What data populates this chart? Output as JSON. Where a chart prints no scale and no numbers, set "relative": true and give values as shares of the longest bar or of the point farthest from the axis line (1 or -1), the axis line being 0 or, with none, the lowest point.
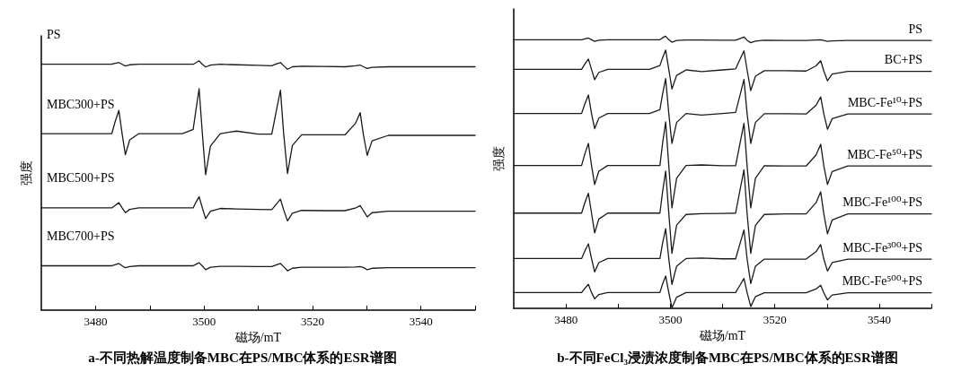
{
  "chart_data": [
    {
      "type": "line",
      "title": "a-不同热解温度制备MBC在PS/MBC体系的ESR谱图",
      "xlabel": "磁场/mT",
      "ylabel": "强度",
      "relative": true,
      "marker": "none",
      "xlim": [
        3470,
        3550
      ],
      "xticks": [
        3480,
        {
          "value": 3490,
          "label": null
        },
        3500,
        {
          "value": 3510,
          "label": null
        },
        3520,
        {
          "value": 3530,
          "label": null
        },
        3540,
        {
          "value": 3550,
          "label": null
        }
      ],
      "x": [
        3470,
        3475,
        3480,
        3483,
        3483.6,
        3484.3,
        3484.9,
        3485.5,
        3486.3,
        3488,
        3492,
        3496,
        3498,
        3498.5,
        3499.1,
        3499.7,
        3500.3,
        3501.2,
        3503,
        3506,
        3510,
        3512.5,
        3513.3,
        3514.1,
        3514.7,
        3515.4,
        3516.3,
        3518,
        3522,
        3526,
        3527.9,
        3528.8,
        3529.4,
        3530.1,
        3531,
        3534,
        3538,
        3542,
        3546,
        3550
      ],
      "series": [
        {
          "name": "PS",
          "color": "#1a1a1a",
          "values": [
            0.986,
            0.986,
            0.986,
            0.986,
            0.99,
            0.993,
            0.986,
            0.979,
            0.984,
            0.986,
            0.986,
            0.986,
            0.986,
            0.992,
            1.0,
            0.986,
            0.975,
            0.983,
            0.986,
            0.984,
            0.982,
            0.98,
            0.987,
            0.993,
            0.98,
            0.966,
            0.976,
            0.978,
            0.977,
            0.976,
            0.98,
            0.983,
            0.976,
            0.969,
            0.974,
            0.976,
            0.976,
            0.976,
            0.976,
            0.976
          ]
        },
        {
          "name": "MBC300+PS",
          "color": "#1a1a1a",
          "values": [
            0.708,
            0.708,
            0.708,
            0.708,
            0.755,
            0.801,
            0.708,
            0.623,
            0.683,
            0.708,
            0.708,
            0.708,
            0.725,
            0.8,
            0.888,
            0.708,
            0.543,
            0.658,
            0.708,
            0.718,
            0.706,
            0.706,
            0.795,
            0.882,
            0.706,
            0.548,
            0.66,
            0.703,
            0.703,
            0.703,
            0.748,
            0.792,
            0.703,
            0.621,
            0.679,
            0.701,
            0.701,
            0.701,
            0.701,
            0.701
          ]
        },
        {
          "name": "MBC500+PS",
          "color": "#1a1a1a",
          "values": [
            0.41,
            0.41,
            0.41,
            0.41,
            0.42,
            0.431,
            0.41,
            0.391,
            0.404,
            0.41,
            0.41,
            0.41,
            0.41,
            0.432,
            0.455,
            0.41,
            0.367,
            0.397,
            0.408,
            0.406,
            0.404,
            0.403,
            0.424,
            0.445,
            0.402,
            0.358,
            0.389,
            0.4,
            0.399,
            0.399,
            0.409,
            0.419,
            0.399,
            0.374,
            0.391,
            0.397,
            0.397,
            0.397,
            0.397,
            0.397
          ]
        },
        {
          "name": "MBC700+PS",
          "color": "#1a1a1a",
          "values": [
            0.178,
            0.178,
            0.178,
            0.178,
            0.182,
            0.187,
            0.178,
            0.17,
            0.175,
            0.178,
            0.178,
            0.178,
            0.178,
            0.184,
            0.19,
            0.177,
            0.162,
            0.172,
            0.176,
            0.176,
            0.175,
            0.175,
            0.181,
            0.187,
            0.174,
            0.158,
            0.168,
            0.172,
            0.172,
            0.172,
            0.173,
            0.175,
            0.171,
            0.162,
            0.168,
            0.17,
            0.17,
            0.17,
            0.17,
            0.17
          ]
        }
      ]
    },
    {
      "type": "line",
      "title": "b-不同FeCl₃浸渍浓度制备MBC在PS/MBC体系的ESR谱图",
      "xlabel": "磁场/mT",
      "ylabel": "强度",
      "relative": true,
      "marker": "none",
      "xlim": [
        3470,
        3550
      ],
      "xticks": [
        3480,
        {
          "value": 3490,
          "label": null
        },
        3500,
        {
          "value": 3510,
          "label": null
        },
        3520,
        {
          "value": 3530,
          "label": null
        },
        3540,
        {
          "value": 3550,
          "label": null
        }
      ],
      "x": [
        3470,
        3475,
        3480,
        3483,
        3483.6,
        3484.3,
        3484.9,
        3485.5,
        3486.3,
        3488,
        3492,
        3496,
        3498,
        3498.5,
        3499.1,
        3499.7,
        3500.3,
        3501.2,
        3503,
        3506,
        3510,
        3512.5,
        3513.3,
        3514.1,
        3514.7,
        3515.4,
        3516.3,
        3518,
        3522,
        3526,
        3527.9,
        3528.8,
        3529.4,
        3530.1,
        3531,
        3534,
        3538,
        3542,
        3546,
        3550
      ],
      "series": [
        {
          "name": "PS",
          "color": "#1a1a1a",
          "values": [
            0.987,
            0.987,
            0.987,
            0.987,
            0.99,
            0.993,
            0.987,
            0.981,
            0.985,
            0.987,
            0.987,
            0.987,
            0.987,
            0.994,
            1.0,
            0.987,
            0.978,
            0.984,
            0.986,
            0.986,
            0.985,
            0.985,
            0.991,
            0.997,
            0.985,
            0.976,
            0.982,
            0.985,
            0.984,
            0.984,
            0.986,
            0.987,
            0.984,
            0.981,
            0.983,
            0.984,
            0.984,
            0.984,
            0.984,
            0.984
          ]
        },
        {
          "name": "BC+PS",
          "color": "#1a1a1a",
          "values": [
            0.878,
            0.878,
            0.878,
            0.878,
            0.897,
            0.916,
            0.878,
            0.84,
            0.867,
            0.878,
            0.878,
            0.878,
            0.892,
            0.92,
            0.949,
            0.878,
            0.806,
            0.856,
            0.876,
            0.87,
            0.876,
            0.88,
            0.913,
            0.946,
            0.876,
            0.8,
            0.853,
            0.873,
            0.873,
            0.872,
            0.891,
            0.91,
            0.872,
            0.836,
            0.861,
            0.871,
            0.871,
            0.871,
            0.871,
            0.871
          ]
        },
        {
          "name": "MBC-Fe¹⁰+PS",
          "color": "#1a1a1a",
          "values": [
            0.716,
            0.716,
            0.716,
            0.716,
            0.75,
            0.784,
            0.716,
            0.66,
            0.699,
            0.716,
            0.716,
            0.716,
            0.73,
            0.787,
            0.844,
            0.716,
            0.606,
            0.683,
            0.716,
            0.71,
            0.716,
            0.72,
            0.78,
            0.841,
            0.716,
            0.606,
            0.683,
            0.715,
            0.715,
            0.714,
            0.746,
            0.777,
            0.714,
            0.658,
            0.697,
            0.714,
            0.714,
            0.714,
            0.714,
            0.714
          ]
        },
        {
          "name": "MBC-Fe⁵⁰+PS",
          "color": "#1a1a1a",
          "values": [
            0.525,
            0.525,
            0.525,
            0.525,
            0.566,
            0.606,
            0.525,
            0.455,
            0.504,
            0.525,
            0.525,
            0.525,
            0.525,
            0.605,
            0.685,
            0.525,
            0.369,
            0.478,
            0.525,
            0.527,
            0.524,
            0.524,
            0.602,
            0.68,
            0.524,
            0.369,
            0.478,
            0.524,
            0.523,
            0.523,
            0.563,
            0.603,
            0.523,
            0.455,
            0.503,
            0.523,
            0.523,
            0.523,
            0.523,
            0.523
          ]
        },
        {
          "name": "MBC-Fe¹⁰⁰+PS",
          "color": "#1a1a1a",
          "values": [
            0.35,
            0.35,
            0.35,
            0.35,
            0.387,
            0.423,
            0.35,
            0.277,
            0.328,
            0.35,
            0.35,
            0.35,
            0.35,
            0.427,
            0.504,
            0.35,
            0.202,
            0.306,
            0.345,
            0.348,
            0.349,
            0.35,
            0.43,
            0.509,
            0.349,
            0.202,
            0.305,
            0.345,
            0.347,
            0.347,
            0.388,
            0.428,
            0.347,
            0.274,
            0.325,
            0.347,
            0.347,
            0.347,
            0.347,
            0.347
          ]
        },
        {
          "name": "MBC-Fe³⁰⁰+PS",
          "color": "#1a1a1a",
          "values": [
            0.183,
            0.183,
            0.183,
            0.183,
            0.21,
            0.237,
            0.183,
            0.134,
            0.168,
            0.183,
            0.183,
            0.183,
            0.183,
            0.238,
            0.293,
            0.183,
            0.088,
            0.155,
            0.183,
            0.185,
            0.182,
            0.182,
            0.235,
            0.288,
            0.182,
            0.091,
            0.155,
            0.181,
            0.181,
            0.181,
            0.208,
            0.234,
            0.181,
            0.137,
            0.168,
            0.181,
            0.181,
            0.181,
            0.181,
            0.181
          ]
        },
        {
          "name": "MBC-Fe⁵⁰⁰+PS",
          "color": "#1a1a1a",
          "values": [
            0.058,
            0.058,
            0.058,
            0.058,
            0.073,
            0.088,
            0.058,
            0.035,
            0.051,
            0.058,
            0.058,
            0.058,
            0.058,
            0.089,
            0.119,
            0.058,
            0.002,
            0.041,
            0.058,
            0.058,
            0.058,
            0.058,
            0.084,
            0.11,
            0.058,
            0.007,
            0.043,
            0.057,
            0.057,
            0.057,
            0.071,
            0.085,
            0.057,
            0.031,
            0.049,
            0.057,
            0.057,
            0.057,
            0.057,
            0.057
          ]
        }
      ]
    }
  ]
}
